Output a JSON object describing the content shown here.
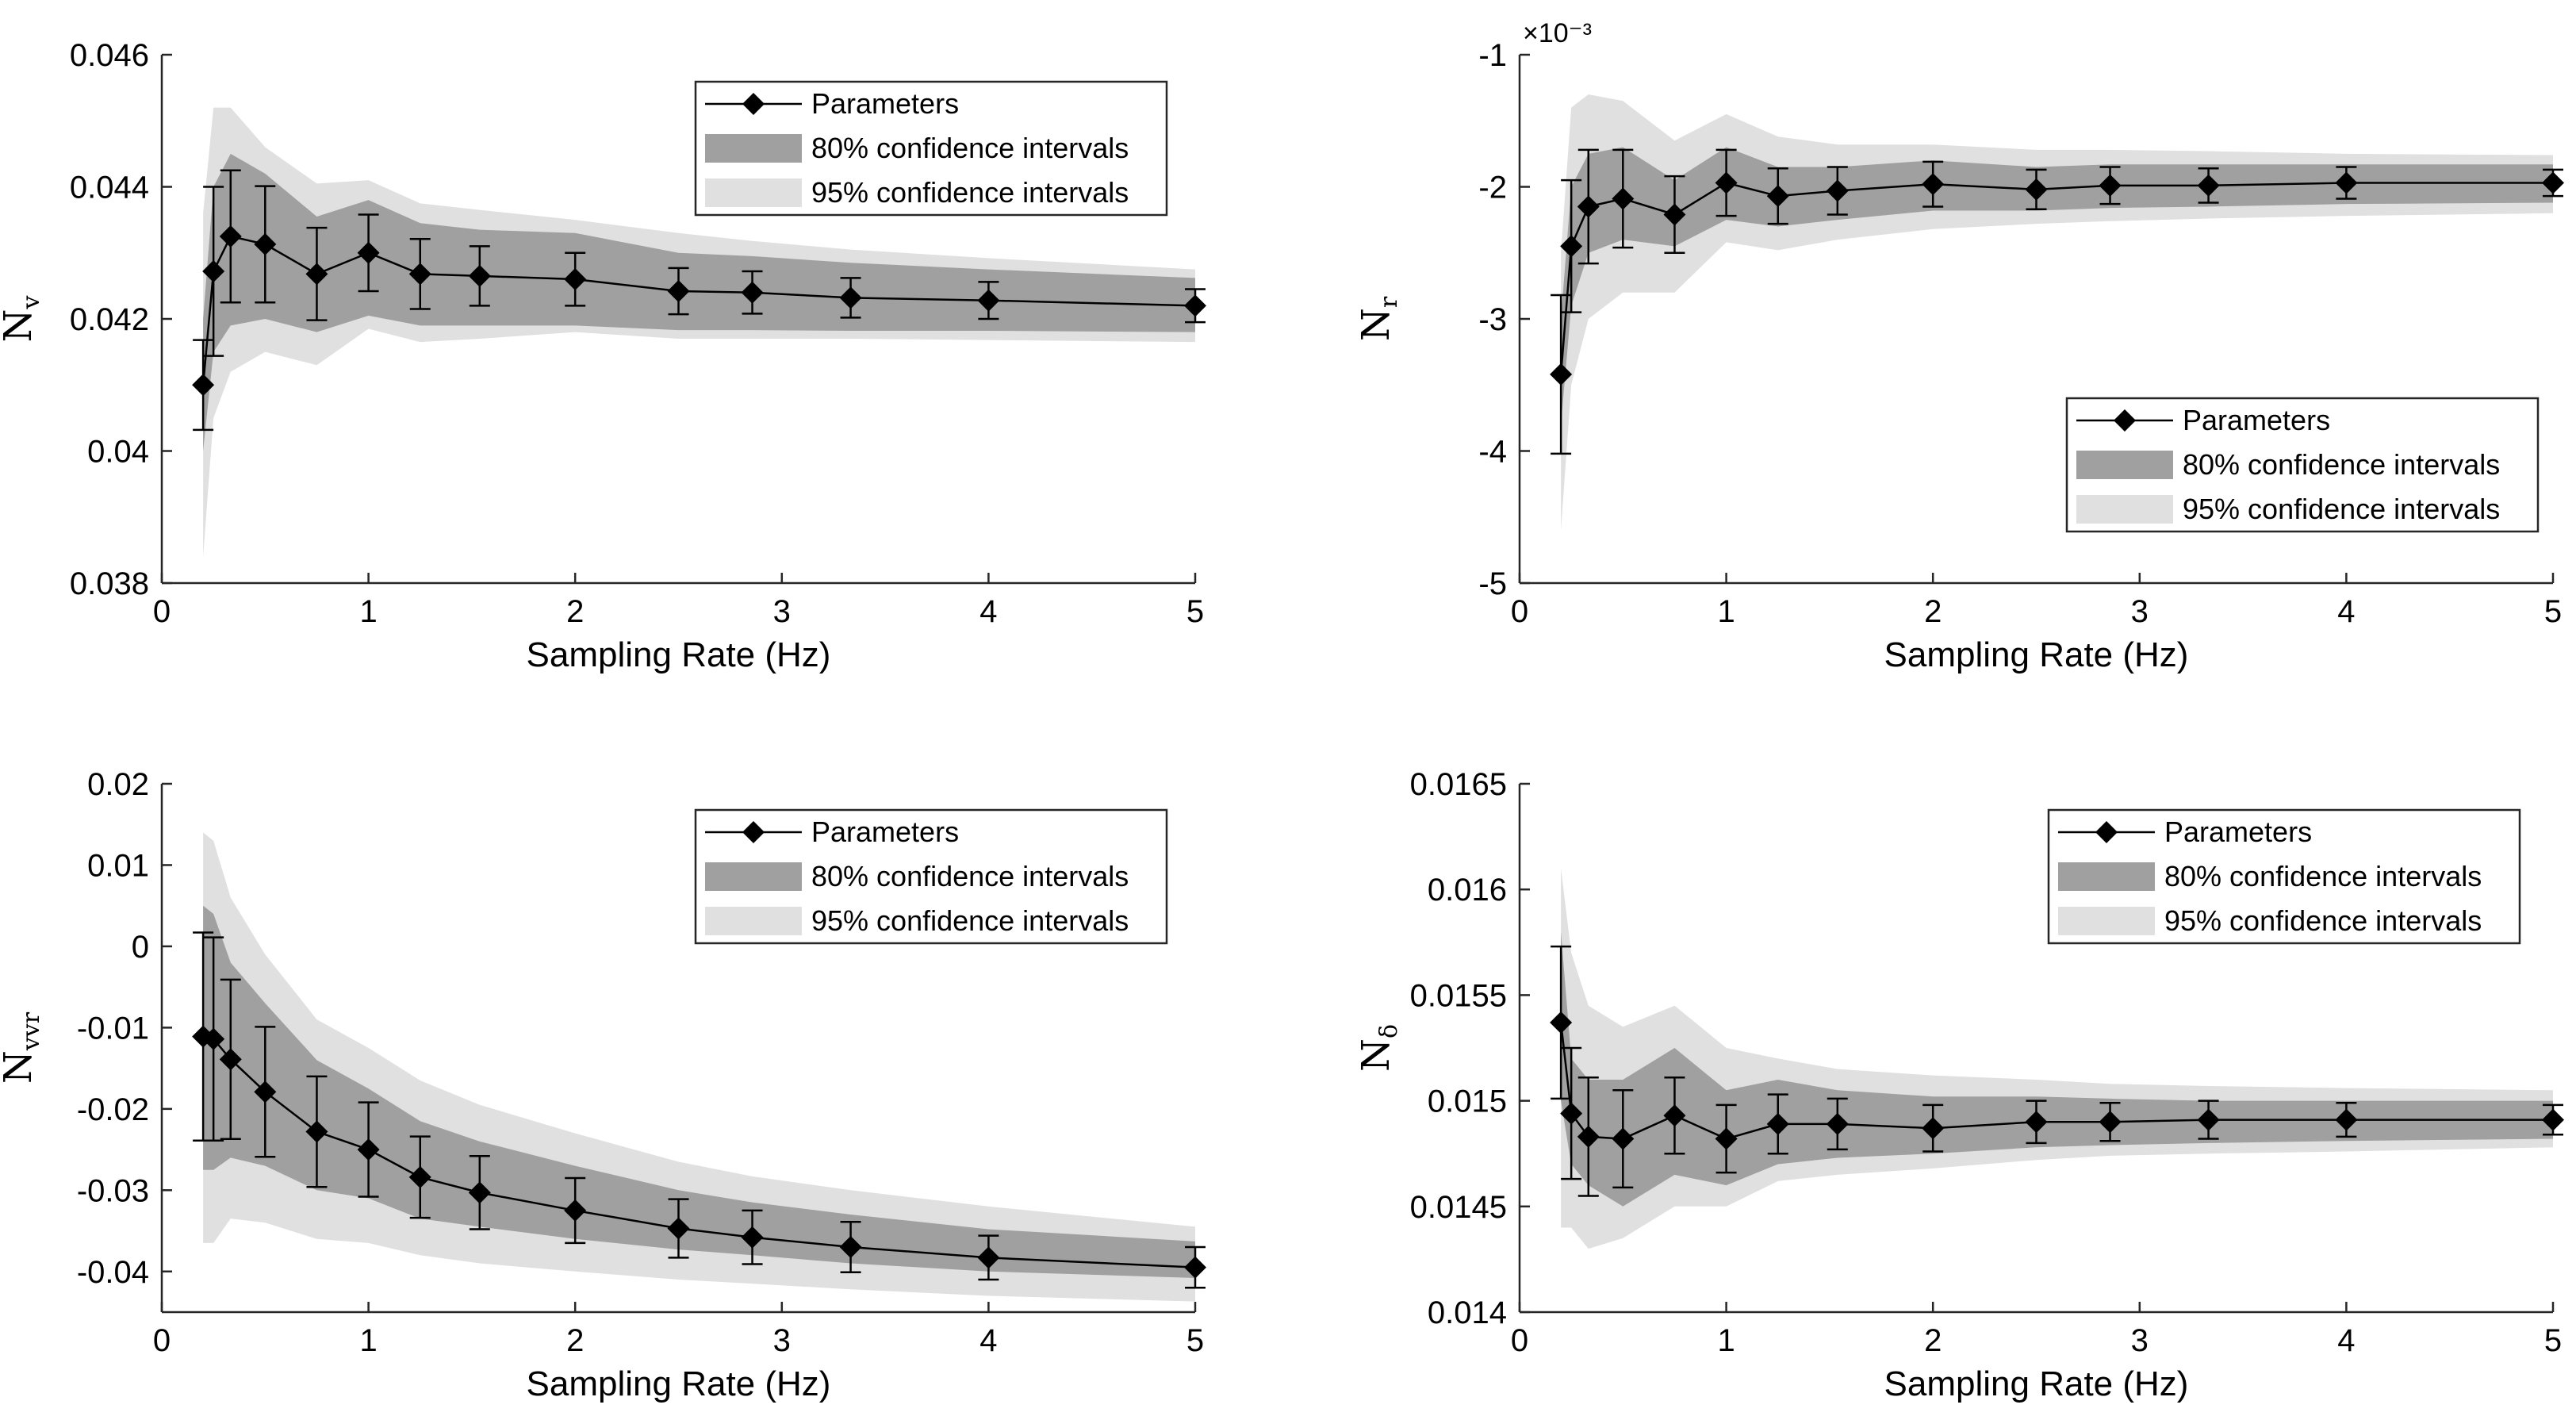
{
  "chart_data": [
    {
      "type": "line",
      "ylabel": {
        "main": "N",
        "sub": "v"
      },
      "xlabel": "Sampling Rate (Hz)",
      "xlim": [
        0,
        5
      ],
      "ylim": [
        0.038,
        0.046
      ],
      "xticks": [
        0,
        1,
        2,
        3,
        4,
        5
      ],
      "xtick_labels": [
        "0",
        "1",
        "2",
        "3",
        "4",
        "5"
      ],
      "yticks": [
        0.038,
        0.04,
        0.042,
        0.044,
        0.046
      ],
      "ytick_labels": [
        "0.038",
        "0.04",
        "0.042",
        "0.044",
        "0.046"
      ],
      "exponent_label": "",
      "legend_position": "top-right",
      "legend": [
        "Parameters",
        "80% confidence intervals",
        "95% confidence intervals"
      ],
      "x": [
        0.2,
        0.25,
        0.333,
        0.5,
        0.75,
        1.0,
        1.25,
        1.538,
        2.0,
        2.5,
        2.857,
        3.333,
        4.0,
        5.0
      ],
      "values": [
        0.041,
        0.04272,
        0.04325,
        0.04313,
        0.04268,
        0.043,
        0.04268,
        0.04265,
        0.0426,
        0.04242,
        0.0424,
        0.04232,
        0.04228,
        0.0422
      ],
      "err": [
        0.00068,
        0.00128,
        0.001,
        0.00088,
        0.0007,
        0.00058,
        0.00053,
        0.00045,
        0.0004,
        0.00035,
        0.00032,
        0.0003,
        0.00028,
        0.00025
      ],
      "ci80_low": [
        0.04,
        0.0415,
        0.0419,
        0.042,
        0.0418,
        0.04205,
        0.0419,
        0.0419,
        0.0419,
        0.04183,
        0.04183,
        0.04182,
        0.04182,
        0.0418
      ],
      "ci80_high": [
        0.042,
        0.044,
        0.0445,
        0.0442,
        0.04355,
        0.0438,
        0.04345,
        0.04335,
        0.0433,
        0.043,
        0.04295,
        0.04285,
        0.04275,
        0.04262
      ],
      "ci95_low": [
        0.0384,
        0.0405,
        0.0412,
        0.0415,
        0.0413,
        0.04185,
        0.04165,
        0.0417,
        0.0418,
        0.0417,
        0.0417,
        0.0417,
        0.04168,
        0.04165
      ],
      "ci95_high": [
        0.0436,
        0.0452,
        0.0452,
        0.0446,
        0.04405,
        0.0441,
        0.04375,
        0.04365,
        0.0435,
        0.0433,
        0.04318,
        0.04305,
        0.04292,
        0.04275
      ]
    },
    {
      "type": "line",
      "ylabel": {
        "main": "N",
        "sub": "r"
      },
      "xlabel": "Sampling Rate (Hz)",
      "xlim": [
        0,
        5
      ],
      "ylim": [
        -5,
        -1
      ],
      "xticks": [
        0,
        1,
        2,
        3,
        4,
        5
      ],
      "xtick_labels": [
        "0",
        "1",
        "2",
        "3",
        "4",
        "5"
      ],
      "yticks": [
        -5,
        -4,
        -3,
        -2,
        -1
      ],
      "ytick_labels": [
        "-5",
        "-4",
        "-3",
        "-2",
        "-1"
      ],
      "exponent_label": "×10⁻³",
      "legend_position": "middle-right",
      "legend": [
        "Parameters",
        "80% confidence intervals",
        "95% confidence intervals"
      ],
      "x": [
        0.2,
        0.25,
        0.333,
        0.5,
        0.75,
        1.0,
        1.25,
        1.538,
        2.0,
        2.5,
        2.857,
        3.333,
        4.0,
        5.0
      ],
      "values": [
        -3.42,
        -2.45,
        -2.15,
        -2.09,
        -2.21,
        -1.97,
        -2.07,
        -2.03,
        -1.98,
        -2.02,
        -1.99,
        -1.99,
        -1.97,
        -1.97
      ],
      "err": [
        0.6,
        0.5,
        0.43,
        0.37,
        0.29,
        0.25,
        0.21,
        0.18,
        0.17,
        0.15,
        0.14,
        0.13,
        0.12,
        0.1
      ],
      "ci80_low": [
        -3.8,
        -2.9,
        -2.5,
        -2.4,
        -2.45,
        -2.25,
        -2.3,
        -2.25,
        -2.18,
        -2.18,
        -2.16,
        -2.15,
        -2.13,
        -2.12
      ],
      "ci80_high": [
        -3.0,
        -2.0,
        -1.75,
        -1.7,
        -1.95,
        -1.7,
        -1.85,
        -1.85,
        -1.8,
        -1.85,
        -1.83,
        -1.83,
        -1.83,
        -1.83
      ],
      "ci95_low": [
        -4.6,
        -3.5,
        -3.0,
        -2.8,
        -2.8,
        -2.42,
        -2.48,
        -2.4,
        -2.32,
        -2.28,
        -2.26,
        -2.24,
        -2.22,
        -2.2
      ],
      "ci95_high": [
        -2.5,
        -1.4,
        -1.3,
        -1.35,
        -1.65,
        -1.45,
        -1.62,
        -1.68,
        -1.68,
        -1.72,
        -1.72,
        -1.73,
        -1.75,
        -1.76
      ]
    },
    {
      "type": "line",
      "ylabel": {
        "main": "N",
        "sub": "vvr"
      },
      "xlabel": "Sampling Rate (Hz)",
      "xlim": [
        0,
        5
      ],
      "ylim": [
        -0.045,
        0.02
      ],
      "xticks": [
        0,
        1,
        2,
        3,
        4,
        5
      ],
      "xtick_labels": [
        "0",
        "1",
        "2",
        "3",
        "4",
        "5"
      ],
      "yticks": [
        -0.04,
        -0.03,
        -0.02,
        -0.01,
        0,
        0.01,
        0.02
      ],
      "ytick_labels": [
        "-0.04",
        "-0.03",
        "-0.02",
        "-0.01",
        "0",
        "0.01",
        "0.02"
      ],
      "exponent_label": "",
      "legend_position": "top-right",
      "legend": [
        "Parameters",
        "80% confidence intervals",
        "95% confidence intervals"
      ],
      "x": [
        0.2,
        0.25,
        0.333,
        0.5,
        0.75,
        1.0,
        1.25,
        1.538,
        2.0,
        2.5,
        2.857,
        3.333,
        4.0,
        5.0
      ],
      "values": [
        -0.0111,
        -0.0114,
        -0.0139,
        -0.0179,
        -0.0228,
        -0.025,
        -0.0284,
        -0.0303,
        -0.0325,
        -0.0347,
        -0.0358,
        -0.037,
        -0.0383,
        -0.0395
      ],
      "err": [
        0.0128,
        0.0125,
        0.0098,
        0.008,
        0.0068,
        0.0058,
        0.005,
        0.0045,
        0.004,
        0.0036,
        0.0033,
        0.0031,
        0.0027,
        0.0025
      ],
      "ci80_low": [
        -0.0275,
        -0.0275,
        -0.026,
        -0.027,
        -0.03,
        -0.031,
        -0.0335,
        -0.0345,
        -0.036,
        -0.0373,
        -0.038,
        -0.039,
        -0.04,
        -0.0408
      ],
      "ci80_high": [
        0.005,
        0.004,
        -0.002,
        -0.007,
        -0.014,
        -0.0175,
        -0.0215,
        -0.024,
        -0.027,
        -0.03,
        -0.0315,
        -0.033,
        -0.0348,
        -0.0363
      ],
      "ci95_low": [
        -0.0365,
        -0.0365,
        -0.0335,
        -0.034,
        -0.036,
        -0.0365,
        -0.038,
        -0.039,
        -0.04,
        -0.041,
        -0.0415,
        -0.0422,
        -0.043,
        -0.0437
      ],
      "ci95_high": [
        0.014,
        0.013,
        0.006,
        -0.001,
        -0.009,
        -0.0125,
        -0.0165,
        -0.0195,
        -0.023,
        -0.0265,
        -0.0283,
        -0.03,
        -0.032,
        -0.0345
      ]
    },
    {
      "type": "line",
      "ylabel": {
        "main": "N",
        "sub": "δ"
      },
      "xlabel": "Sampling Rate (Hz)",
      "xlim": [
        0,
        5
      ],
      "ylim": [
        0.014,
        0.0165
      ],
      "xticks": [
        0,
        1,
        2,
        3,
        4,
        5
      ],
      "xtick_labels": [
        "0",
        "1",
        "2",
        "3",
        "4",
        "5"
      ],
      "yticks": [
        0.014,
        0.0145,
        0.015,
        0.0155,
        0.016,
        0.0165
      ],
      "ytick_labels": [
        "0.014",
        "0.0145",
        "0.015",
        "0.0155",
        "0.016",
        "0.0165"
      ],
      "exponent_label": "",
      "legend_position": "top-right",
      "legend": [
        "Parameters",
        "80% confidence intervals",
        "95% confidence intervals"
      ],
      "x": [
        0.2,
        0.25,
        0.333,
        0.5,
        0.75,
        1.0,
        1.25,
        1.538,
        2.0,
        2.5,
        2.857,
        3.333,
        4.0,
        5.0
      ],
      "values": [
        0.01537,
        0.01494,
        0.01483,
        0.01482,
        0.01493,
        0.01482,
        0.01489,
        0.01489,
        0.01487,
        0.0149,
        0.0149,
        0.01491,
        0.01491,
        0.01491
      ],
      "err": [
        0.00036,
        0.00031,
        0.00028,
        0.00023,
        0.00018,
        0.00016,
        0.00014,
        0.00012,
        0.00011,
        0.0001,
        9e-05,
        9e-05,
        8e-05,
        7e-05
      ],
      "ci80_low": [
        0.015,
        0.0147,
        0.0146,
        0.0145,
        0.01465,
        0.0146,
        0.0147,
        0.01473,
        0.01475,
        0.01478,
        0.01479,
        0.0148,
        0.01481,
        0.01482
      ],
      "ci80_high": [
        0.0158,
        0.0152,
        0.0151,
        0.0151,
        0.01525,
        0.01505,
        0.0151,
        0.01505,
        0.01502,
        0.01502,
        0.01501,
        0.015,
        0.015,
        0.015
      ],
      "ci95_low": [
        0.0144,
        0.0144,
        0.0143,
        0.01435,
        0.0145,
        0.0145,
        0.01462,
        0.01465,
        0.01468,
        0.01472,
        0.01474,
        0.01475,
        0.01476,
        0.01478
      ],
      "ci95_high": [
        0.0161,
        0.0157,
        0.01545,
        0.01535,
        0.01545,
        0.01525,
        0.0152,
        0.01515,
        0.01512,
        0.0151,
        0.01508,
        0.01507,
        0.01506,
        0.01505
      ]
    }
  ],
  "colors": {
    "ci80": "#a0a0a0",
    "ci95": "#e0e0e0",
    "series": "#000000",
    "axis": "#262626"
  }
}
